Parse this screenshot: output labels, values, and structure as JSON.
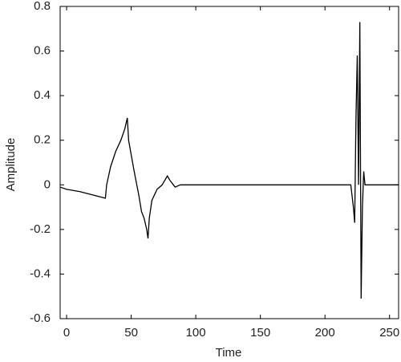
{
  "chart_data": {
    "type": "line",
    "xlabel": "Time",
    "ylabel": "Amplitude",
    "x": [
      -5,
      0,
      10,
      20,
      30,
      31,
      34,
      38,
      42,
      45,
      47,
      48,
      52,
      56,
      58,
      60,
      62,
      63,
      64,
      66,
      70,
      74,
      78,
      80,
      84,
      88,
      92,
      220,
      222,
      223,
      224,
      225,
      226,
      227,
      228,
      229,
      230,
      231,
      257
    ],
    "series": [
      {
        "color": "#000000",
        "values": [
          -0.01,
          -0.02,
          -0.03,
          -0.045,
          -0.06,
          0.0,
          0.08,
          0.15,
          0.2,
          0.25,
          0.3,
          0.2,
          0.07,
          -0.05,
          -0.12,
          -0.15,
          -0.2,
          -0.24,
          -0.15,
          -0.07,
          -0.02,
          0.0,
          0.04,
          0.02,
          -0.01,
          0.0,
          0.0,
          0.0,
          -0.1,
          -0.17,
          0.3,
          0.58,
          0.0,
          0.73,
          -0.51,
          -0.1,
          0.06,
          0.0,
          0.0
        ]
      }
    ],
    "xlim": [
      -5,
      257
    ],
    "ylim": [
      -0.6,
      0.8
    ],
    "xticks": [
      0,
      50,
      100,
      150,
      200,
      250
    ],
    "yticks": [
      -0.6,
      -0.4,
      -0.2,
      0,
      0.2,
      0.4,
      0.6,
      0.8
    ]
  }
}
